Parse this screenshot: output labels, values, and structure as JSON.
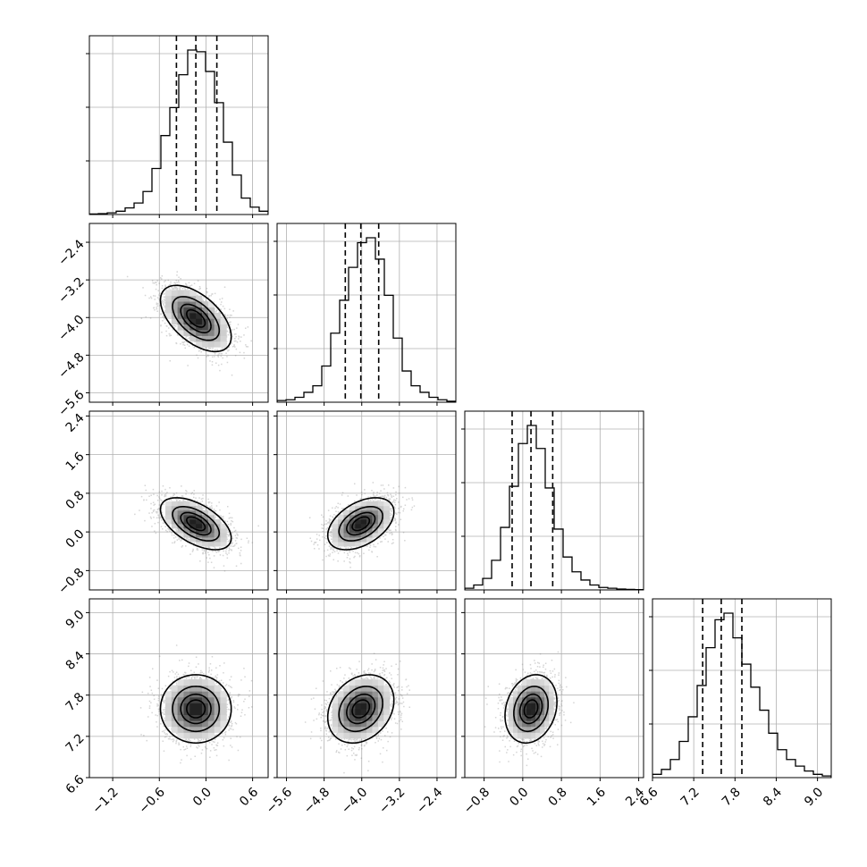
{
  "chart_data": {
    "type": "corner",
    "grid": true,
    "params": [
      {
        "range": [
          -1.5,
          0.8
        ],
        "ticks": [
          -1.2,
          -0.6,
          0.0,
          0.6
        ],
        "tick_labels": [
          "−1.2",
          "−0.6",
          "0.0",
          "0.6"
        ],
        "mean": -0.13,
        "sd": 0.22,
        "quantiles": [
          -0.38,
          -0.13,
          0.14
        ]
      },
      {
        "range": [
          -5.8,
          -2.0
        ],
        "ticks": [
          -5.6,
          -4.8,
          -4.0,
          -3.2,
          -2.4
        ],
        "tick_labels": [
          "−5.6",
          "−4.8",
          "−4.0",
          "−3.2",
          "−2.4"
        ],
        "mean": -4.02,
        "sd": 0.34,
        "quantiles": [
          -4.35,
          -4.02,
          -3.64
        ]
      },
      {
        "range": [
          -1.2,
          2.5
        ],
        "ticks": [
          -0.8,
          0.0,
          0.8,
          1.6,
          2.4
        ],
        "tick_labels": [
          "−0.8",
          "0.0",
          "0.8",
          "1.6",
          "2.4"
        ],
        "mean": 0.17,
        "sd": 0.26,
        "quantiles": [
          -0.22,
          0.17,
          0.62
        ]
      },
      {
        "range": [
          6.6,
          9.2
        ],
        "ticks": [
          6.6,
          7.2,
          7.8,
          8.4,
          9.0
        ],
        "tick_labels": [
          "6.6",
          "7.2",
          "7.8",
          "8.4",
          "9.0"
        ],
        "mean": 7.6,
        "sd": 0.24,
        "quantiles": [
          7.33,
          7.6,
          7.9
        ]
      }
    ],
    "correlations": {
      "1-0": -0.55,
      "2-0": -0.55,
      "2-1": 0.45,
      "3-0": 0.0,
      "3-1": 0.25,
      "3-2": 0.2
    },
    "histograms": [
      [
        0.003,
        0.005,
        0.01,
        0.02,
        0.04,
        0.07,
        0.14,
        0.28,
        0.48,
        0.65,
        0.85,
        1.0,
        0.99,
        0.87,
        0.68,
        0.44,
        0.24,
        0.1,
        0.045,
        0.02
      ],
      [
        0.01,
        0.015,
        0.03,
        0.06,
        0.1,
        0.22,
        0.42,
        0.62,
        0.82,
        0.97,
        1.0,
        0.87,
        0.65,
        0.39,
        0.19,
        0.1,
        0.06,
        0.03,
        0.015,
        0.006
      ],
      [
        0.01,
        0.03,
        0.07,
        0.18,
        0.38,
        0.63,
        0.89,
        1.0,
        0.86,
        0.62,
        0.37,
        0.2,
        0.11,
        0.06,
        0.03,
        0.015,
        0.01,
        0.005,
        0.003,
        0.002
      ],
      [
        0.02,
        0.05,
        0.11,
        0.22,
        0.37,
        0.56,
        0.79,
        0.96,
        1.0,
        0.85,
        0.69,
        0.55,
        0.41,
        0.27,
        0.17,
        0.11,
        0.07,
        0.04,
        0.02,
        0.01
      ]
    ]
  }
}
